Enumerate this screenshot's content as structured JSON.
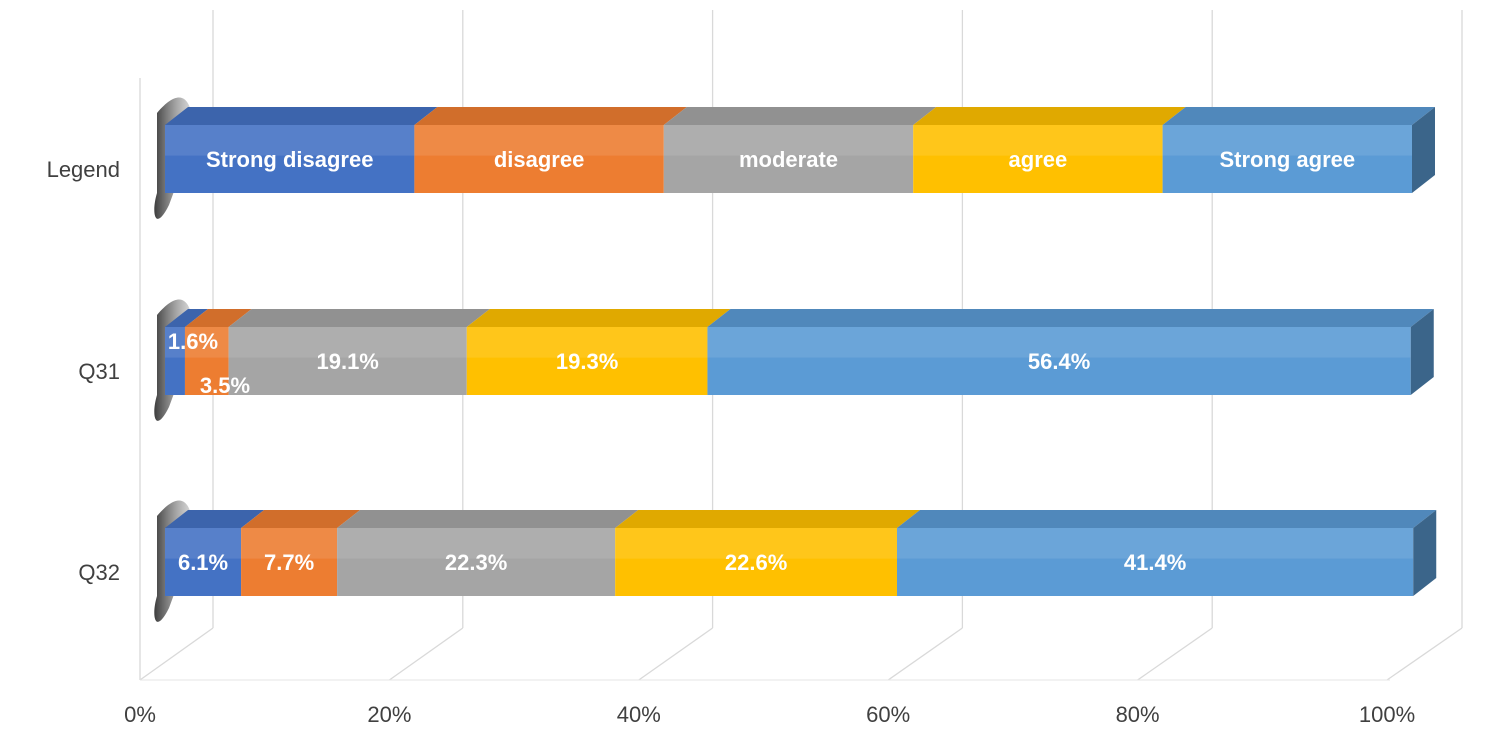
{
  "chart_data": {
    "type": "bar",
    "orientation": "horizontal",
    "stacked": true,
    "percent": true,
    "style": "3d",
    "categories": [
      "Legend",
      "Q31",
      "Q32"
    ],
    "series": [
      {
        "name": "Strong disagree",
        "color": "#4472C4",
        "values": [
          20,
          1.6,
          6.1
        ],
        "labels": [
          "Strong disagree",
          "1.6%",
          "6.1%"
        ]
      },
      {
        "name": "disagree",
        "color": "#ED7D31",
        "values": [
          20,
          3.5,
          7.7
        ],
        "labels": [
          "disagree",
          "3.5%",
          "7.7%"
        ]
      },
      {
        "name": "moderate",
        "color": "#A5A5A5",
        "values": [
          20,
          19.1,
          22.3
        ],
        "labels": [
          "moderate",
          "19.1%",
          "22.3%"
        ]
      },
      {
        "name": "agree",
        "color": "#FFC000",
        "values": [
          20,
          19.3,
          22.6
        ],
        "labels": [
          "agree",
          "19.3%",
          "22.6%"
        ]
      },
      {
        "name": "Strong agree",
        "color": "#5B9BD5",
        "values": [
          20,
          56.4,
          41.4
        ],
        "labels": [
          "Strong agree",
          "56.4%",
          "41.4%"
        ]
      }
    ],
    "x_ticks": [
      "0%",
      "20%",
      "40%",
      "60%",
      "80%",
      "100%"
    ],
    "xlim": [
      0,
      100
    ],
    "grid": true,
    "legend": "none",
    "title": "",
    "xlabel": "",
    "ylabel": ""
  }
}
